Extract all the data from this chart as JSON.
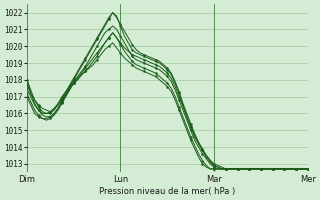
{
  "background_color": "#d4ecd4",
  "plot_bg_color": "#d4ecd4",
  "line_color": "#1a5c1a",
  "grid_color": "#a0c8a0",
  "ylabel_text": "Pression niveau de la mer( hPa )",
  "ylim": [
    1012.5,
    1022.5
  ],
  "yticks": [
    1013,
    1014,
    1015,
    1016,
    1017,
    1018,
    1019,
    1020,
    1021,
    1022
  ],
  "day_labels": [
    "Dim",
    "Lun",
    "Mar",
    "Mer"
  ],
  "day_positions": [
    0,
    24,
    48,
    72
  ],
  "series": [
    [
      1018.0,
      1017.2,
      1016.8,
      1016.5,
      1016.3,
      1016.2,
      1016.1,
      1016.3,
      1016.5,
      1016.8,
      1017.2,
      1017.6,
      1018.0,
      1018.4,
      1018.8,
      1019.2,
      1019.6,
      1020.0,
      1020.4,
      1020.8,
      1021.2,
      1021.6,
      1022.0,
      1021.8,
      1021.2,
      1020.6,
      1020.2,
      1019.8,
      1019.6,
      1019.5,
      1019.4,
      1019.3,
      1019.2,
      1019.1,
      1019.0,
      1018.8,
      1018.6,
      1018.3,
      1017.8,
      1017.2,
      1016.5,
      1015.8,
      1015.2,
      1014.6,
      1014.2,
      1013.8,
      1013.5,
      1013.2,
      1012.9,
      1012.8,
      1012.7,
      1012.7,
      1012.7,
      1012.7,
      1012.7,
      1012.7,
      1012.7,
      1012.7,
      1012.7,
      1012.7,
      1012.7,
      1012.7,
      1012.7,
      1012.7,
      1012.7,
      1012.7,
      1012.7,
      1012.7,
      1012.7,
      1012.7,
      1012.7,
      1012.7,
      1012.7
    ],
    [
      1017.5,
      1017.0,
      1016.5,
      1016.2,
      1016.0,
      1016.0,
      1016.1,
      1016.3,
      1016.6,
      1017.0,
      1017.3,
      1017.6,
      1017.9,
      1018.2,
      1018.5,
      1018.8,
      1019.2,
      1019.6,
      1020.0,
      1020.4,
      1020.8,
      1021.0,
      1021.2,
      1021.0,
      1020.6,
      1020.2,
      1019.8,
      1019.4,
      1019.2,
      1019.1,
      1019.0,
      1018.9,
      1018.8,
      1018.7,
      1018.6,
      1018.4,
      1018.2,
      1017.9,
      1017.4,
      1016.8,
      1016.2,
      1015.6,
      1015.0,
      1014.4,
      1014.0,
      1013.6,
      1013.3,
      1013.0,
      1012.8,
      1012.7,
      1012.7,
      1012.7,
      1012.7,
      1012.7,
      1012.7,
      1012.7,
      1012.7,
      1012.7,
      1012.7,
      1012.7,
      1012.7,
      1012.7,
      1012.7,
      1012.7,
      1012.7,
      1012.7,
      1012.7,
      1012.7,
      1012.7,
      1012.7,
      1012.7,
      1012.7,
      1012.7
    ],
    [
      1017.8,
      1017.2,
      1016.6,
      1016.2,
      1015.9,
      1015.8,
      1015.8,
      1016.0,
      1016.3,
      1016.7,
      1017.1,
      1017.5,
      1017.8,
      1018.0,
      1018.3,
      1018.5,
      1018.8,
      1019.1,
      1019.4,
      1019.8,
      1020.2,
      1020.5,
      1020.8,
      1020.5,
      1020.2,
      1019.9,
      1019.7,
      1019.5,
      1019.4,
      1019.3,
      1019.2,
      1019.1,
      1019.0,
      1018.9,
      1018.8,
      1018.6,
      1018.4,
      1018.1,
      1017.6,
      1017.0,
      1016.4,
      1015.8,
      1015.2,
      1014.7,
      1014.2,
      1013.8,
      1013.4,
      1013.1,
      1012.9,
      1012.8,
      1012.7,
      1012.7,
      1012.7,
      1012.7,
      1012.7,
      1012.7,
      1012.7,
      1012.7,
      1012.7,
      1012.7,
      1012.7,
      1012.7,
      1012.7,
      1012.7,
      1012.7,
      1012.7,
      1012.7,
      1012.7,
      1012.7,
      1012.7,
      1012.7,
      1012.7,
      1012.7
    ],
    [
      1017.0,
      1016.5,
      1016.0,
      1015.8,
      1015.7,
      1015.7,
      1015.8,
      1016.0,
      1016.3,
      1016.7,
      1017.1,
      1017.5,
      1017.8,
      1018.0,
      1018.3,
      1018.5,
      1018.7,
      1018.9,
      1019.2,
      1019.5,
      1019.8,
      1020.0,
      1020.2,
      1019.9,
      1019.6,
      1019.3,
      1019.1,
      1018.9,
      1018.7,
      1018.6,
      1018.5,
      1018.4,
      1018.3,
      1018.2,
      1018.0,
      1017.8,
      1017.6,
      1017.3,
      1016.8,
      1016.2,
      1015.6,
      1015.0,
      1014.4,
      1013.9,
      1013.4,
      1013.0,
      1012.8,
      1012.7,
      1012.7,
      1012.7,
      1012.7,
      1012.7,
      1012.7,
      1012.7,
      1012.7,
      1012.7,
      1012.7,
      1012.7,
      1012.7,
      1012.7,
      1012.7,
      1012.7,
      1012.7,
      1012.7,
      1012.7,
      1012.7,
      1012.7,
      1012.7,
      1012.7,
      1012.7,
      1012.7,
      1012.7,
      1012.7
    ],
    [
      1018.0,
      1017.4,
      1016.8,
      1016.4,
      1016.1,
      1016.0,
      1016.0,
      1016.2,
      1016.5,
      1016.9,
      1017.3,
      1017.7,
      1018.1,
      1018.5,
      1018.9,
      1019.3,
      1019.7,
      1020.1,
      1020.5,
      1020.9,
      1021.3,
      1021.7,
      1022.0,
      1021.7,
      1021.3,
      1020.9,
      1020.5,
      1020.1,
      1019.8,
      1019.6,
      1019.5,
      1019.4,
      1019.3,
      1019.2,
      1019.1,
      1018.9,
      1018.7,
      1018.4,
      1017.9,
      1017.3,
      1016.6,
      1016.0,
      1015.4,
      1014.8,
      1014.3,
      1013.9,
      1013.5,
      1013.2,
      1013.0,
      1012.9,
      1012.8,
      1012.7,
      1012.7,
      1012.7,
      1012.7,
      1012.7,
      1012.7,
      1012.7,
      1012.7,
      1012.7,
      1012.7,
      1012.7,
      1012.7,
      1012.7,
      1012.7,
      1012.7,
      1012.7,
      1012.7,
      1012.7,
      1012.7,
      1012.7,
      1012.7,
      1012.7
    ],
    [
      1017.2,
      1016.7,
      1016.2,
      1015.9,
      1015.7,
      1015.6,
      1015.7,
      1015.9,
      1016.2,
      1016.6,
      1017.0,
      1017.4,
      1017.8,
      1018.1,
      1018.4,
      1018.7,
      1019.0,
      1019.3,
      1019.6,
      1019.9,
      1020.2,
      1020.5,
      1020.8,
      1020.5,
      1020.1,
      1019.7,
      1019.4,
      1019.1,
      1018.9,
      1018.8,
      1018.7,
      1018.6,
      1018.5,
      1018.4,
      1018.2,
      1018.0,
      1017.8,
      1017.5,
      1017.0,
      1016.4,
      1015.8,
      1015.2,
      1014.6,
      1014.1,
      1013.6,
      1013.2,
      1012.9,
      1012.7,
      1012.7,
      1012.7,
      1012.7,
      1012.7,
      1012.7,
      1012.7,
      1012.7,
      1012.7,
      1012.7,
      1012.7,
      1012.7,
      1012.7,
      1012.7,
      1012.7,
      1012.7,
      1012.7,
      1012.7,
      1012.7,
      1012.7,
      1012.7,
      1012.7,
      1012.7,
      1012.7,
      1012.7,
      1012.7
    ]
  ]
}
